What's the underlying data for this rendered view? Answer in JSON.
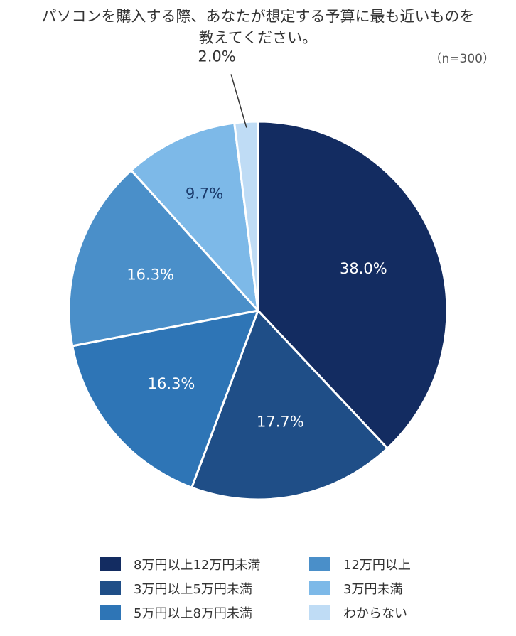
{
  "title": {
    "line1": "パソコンを購入する際、あなたが想定する予算に最も近いものを",
    "line2": "教えてください。"
  },
  "sample_note": "（n=300）",
  "chart_data": {
    "type": "pie",
    "categories": [
      "8万円以上12万円未満",
      "3万円以上5万円未満",
      "5万円以上8万円未満",
      "12万円以上",
      "3万円未満",
      "わからない"
    ],
    "values": [
      38.0,
      17.7,
      16.3,
      16.3,
      9.7,
      2.0
    ],
    "labels": [
      "38.0%",
      "17.7%",
      "16.3%",
      "16.3%",
      "9.7%",
      "2.0%"
    ],
    "colors": [
      "#132c61",
      "#1f4e87",
      "#2e75b6",
      "#4a8fc9",
      "#7db9e8",
      "#bfdcf5"
    ],
    "label_colors": [
      "#ffffff",
      "#ffffff",
      "#ffffff",
      "#ffffff",
      "#1a3a6b",
      "#333333"
    ],
    "start": "12 o'clock",
    "direction": "clockwise",
    "legend_position": "bottom"
  },
  "legend": {
    "items": [
      {
        "label": "8万円以上12万円未満",
        "color": "#132c61"
      },
      {
        "label": "12万円以上",
        "color": "#4a8fc9"
      },
      {
        "label": "3万円以上5万円未満",
        "color": "#1f4e87"
      },
      {
        "label": "3万円未満",
        "color": "#7db9e8"
      },
      {
        "label": "5万円以上8万円未満",
        "color": "#2e75b6"
      },
      {
        "label": "わからない",
        "color": "#bfdcf5"
      }
    ]
  }
}
